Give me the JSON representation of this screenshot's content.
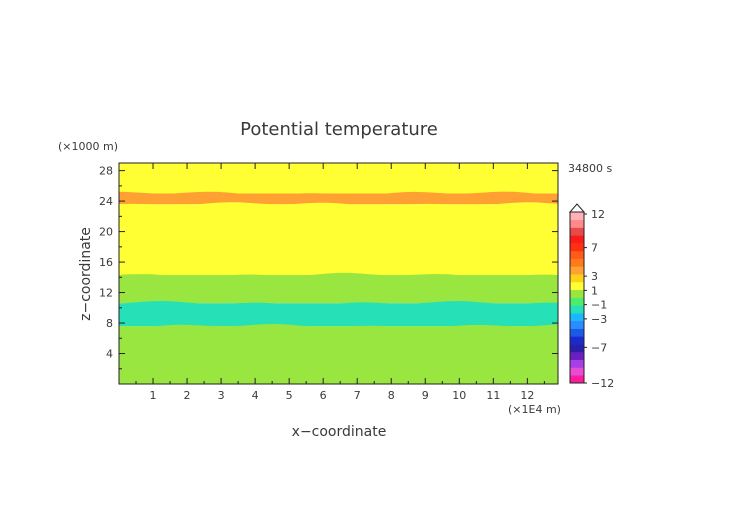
{
  "chart_data": {
    "type": "heatmap",
    "title": "Potential temperature",
    "xlabel": "x−coordinate",
    "ylabel": "z−coordinate",
    "x_unit_label": "(×1E4 m)",
    "y_unit_label": "(×1000 m)",
    "time_label": "34800 s",
    "xlim": [
      0,
      12.9
    ],
    "ylim": [
      0,
      29
    ],
    "x_ticks": [
      1,
      2,
      3,
      4,
      5,
      6,
      7,
      8,
      9,
      10,
      11,
      12
    ],
    "y_ticks": [
      4,
      8,
      12,
      16,
      20,
      24,
      28
    ],
    "layers": [
      {
        "z_bottom": 0,
        "z_top": 7.6,
        "value_range": "-1 to 0",
        "color": "#99e640"
      },
      {
        "z_bottom": 7.6,
        "z_top": 10.6,
        "value_range": "-3 to -2",
        "color": "#26e0b8"
      },
      {
        "z_bottom": 10.6,
        "z_top": 14.3,
        "value_range": "-1 to 0",
        "color": "#99e640"
      },
      {
        "z_bottom": 14.3,
        "z_top": 23.6,
        "value_range": "1 to 2",
        "color": "#ffff33"
      },
      {
        "z_bottom": 23.6,
        "z_top": 25.0,
        "value_range": "3 to 4",
        "color": "#ffa033"
      },
      {
        "z_bottom": 25.0,
        "z_top": 29,
        "value_range": "1 to 2",
        "color": "#ffff33"
      }
    ],
    "colorbar": {
      "labels": [
        "12",
        "7",
        "3",
        "1",
        "−1",
        "−3",
        "−7",
        "−12"
      ],
      "label_values": [
        12,
        7,
        3,
        1,
        -1,
        -3,
        -7,
        -12
      ],
      "colors": [
        "#ff1a9e",
        "#e64dd2",
        "#a640e6",
        "#6a1fc0",
        "#2a1fa8",
        "#1a2acc",
        "#1a5ae6",
        "#2a8cff",
        "#1ab8ff",
        "#26e0b8",
        "#4ded6a",
        "#99e640",
        "#ffff33",
        "#ffd21a",
        "#ffa033",
        "#ff7a1a",
        "#ff5a1a",
        "#ff3010",
        "#ff1a1a",
        "#e64a4a",
        "#ff8a8a",
        "#ffb0b8"
      ]
    }
  }
}
